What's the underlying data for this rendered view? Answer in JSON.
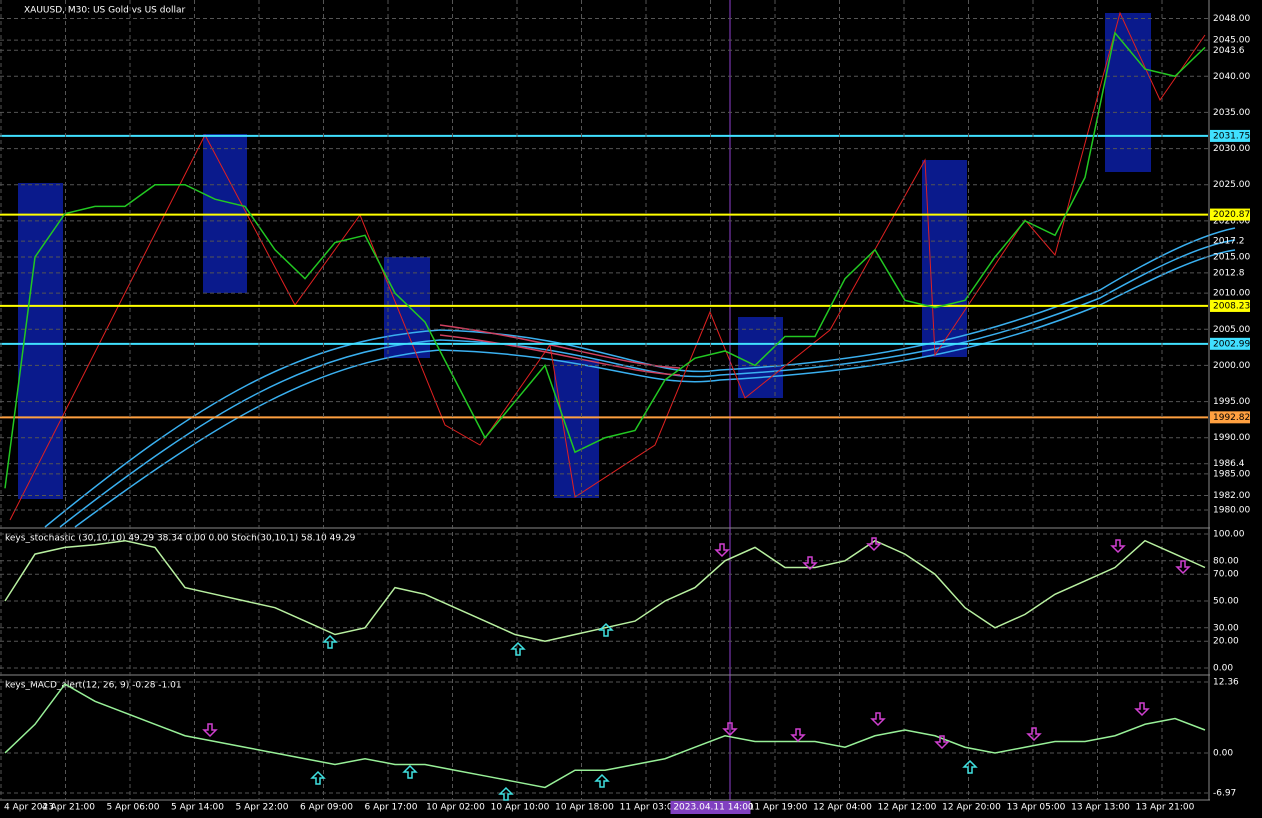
{
  "chart_data": [
    {
      "type": "line",
      "title": "XAUUSD, M30: US Gold vs US dollar",
      "color": "#22c822",
      "values": [
        1983,
        2015,
        2021,
        2022,
        2022,
        2025,
        2025,
        2023,
        2022,
        2016,
        2012,
        2017,
        2018,
        2010,
        2006,
        1998,
        1990,
        1995,
        2000,
        1988,
        1990,
        1991,
        1998,
        2001,
        2002,
        2000,
        2004,
        2004,
        2012,
        2016,
        2009,
        2008,
        2009,
        2015,
        2020,
        2018,
        2026,
        2046,
        2041,
        2040,
        2044
      ],
      "ylim": [
        1980,
        2050
      ],
      "yticks": [
        {
          "value": 2048,
          "label": "2048.00"
        },
        {
          "value": 2045,
          "label": "2045.00"
        },
        2043.6,
        {
          "value": 2040,
          "label": "2040.00"
        },
        {
          "value": 2035,
          "label": "2035.00"
        },
        {
          "value": 2030,
          "label": "2030.00"
        },
        {
          "value": 2025,
          "label": "2025.00"
        },
        {
          "value": 2020,
          "label": "2020.00"
        },
        2017.2,
        {
          "value": 2015,
          "label": "2015.00"
        },
        2012.8,
        {
          "value": 2010,
          "label": "2010.00"
        },
        {
          "value": 2005,
          "label": "2005.00"
        },
        {
          "value": 2000,
          "label": "2000.00"
        },
        {
          "value": 1995,
          "label": "1995.00"
        },
        {
          "value": 1990,
          "label": "1990.00"
        },
        1986.4,
        {
          "value": 1985,
          "label": "1985.00"
        },
        {
          "value": 1982,
          "label": "1982.00"
        },
        {
          "value": 1980,
          "label": "1980.00"
        }
      ],
      "levels": [
        {
          "value": 2031.75,
          "color": "#40e0ff"
        },
        {
          "value": 2020.87,
          "color": "#ffff00"
        },
        {
          "value": 2008.23,
          "color": "#ffff00"
        },
        {
          "value": 2002.99,
          "color": "#40e0ff"
        },
        {
          "value": 1992.82,
          "color": "#ffa040"
        }
      ],
      "xticks": [
        "4 Apr 2023",
        "4 Apr 21:00",
        "5 Apr 06:00",
        "5 Apr 14:00",
        "5 Apr 22:00",
        "6 Apr 09:00",
        "6 Apr 17:00",
        "10 Apr 02:00",
        "10 Apr 10:00",
        "10 Apr 18:00",
        "11 Apr 03:00",
        "2023.04.11 14:00",
        "11 Apr 19:00",
        "12 Apr 04:00",
        "12 Apr 12:00",
        "12 Apr 20:00",
        "13 Apr 05:00",
        "13 Apr 13:00",
        "13 Apr 21:00"
      ]
    },
    {
      "type": "line",
      "title": "keys_stochastic (30,10,10) 49.29 38.34 0.00 0.00 Stoch(30,10,1) 58.10 49.29",
      "color": "#b8f0a0",
      "values": [
        50,
        85,
        90,
        92,
        95,
        90,
        60,
        55,
        50,
        45,
        35,
        25,
        30,
        60,
        55,
        45,
        35,
        25,
        20,
        25,
        30,
        35,
        50,
        60,
        80,
        90,
        75,
        75,
        80,
        95,
        85,
        70,
        45,
        30,
        40,
        55,
        65,
        75,
        95,
        85,
        75
      ],
      "ylim": [
        0,
        100
      ],
      "yticks": [
        {
          "value": 100,
          "label": "100.00"
        },
        {
          "value": 80,
          "label": "80.00"
        },
        {
          "value": 70,
          "label": "70.00"
        },
        {
          "value": 50,
          "label": "50.00"
        },
        {
          "value": 30,
          "label": "30.00"
        },
        {
          "value": 20,
          "label": "20.00"
        },
        {
          "value": 0,
          "label": "0.00"
        }
      ]
    },
    {
      "type": "line",
      "title": "keys_MACD_alert(12, 26, 9) -0.28 -1.01",
      "color": "#98f098",
      "values": [
        0,
        5,
        12,
        9,
        7,
        5,
        3,
        2,
        1,
        0,
        -1,
        -2,
        -1,
        -2,
        -2,
        -3,
        -4,
        -5,
        -6,
        -3,
        -3,
        -2,
        -1,
        1,
        3,
        2,
        2,
        2,
        1,
        3,
        4,
        3,
        1,
        0,
        1,
        2,
        2,
        3,
        5,
        6,
        4
      ],
      "ylim": [
        -6.97,
        12.36
      ],
      "yticks": [
        12.36,
        {
          "value": 0,
          "label": "0.00"
        },
        -6.97
      ]
    }
  ]
}
